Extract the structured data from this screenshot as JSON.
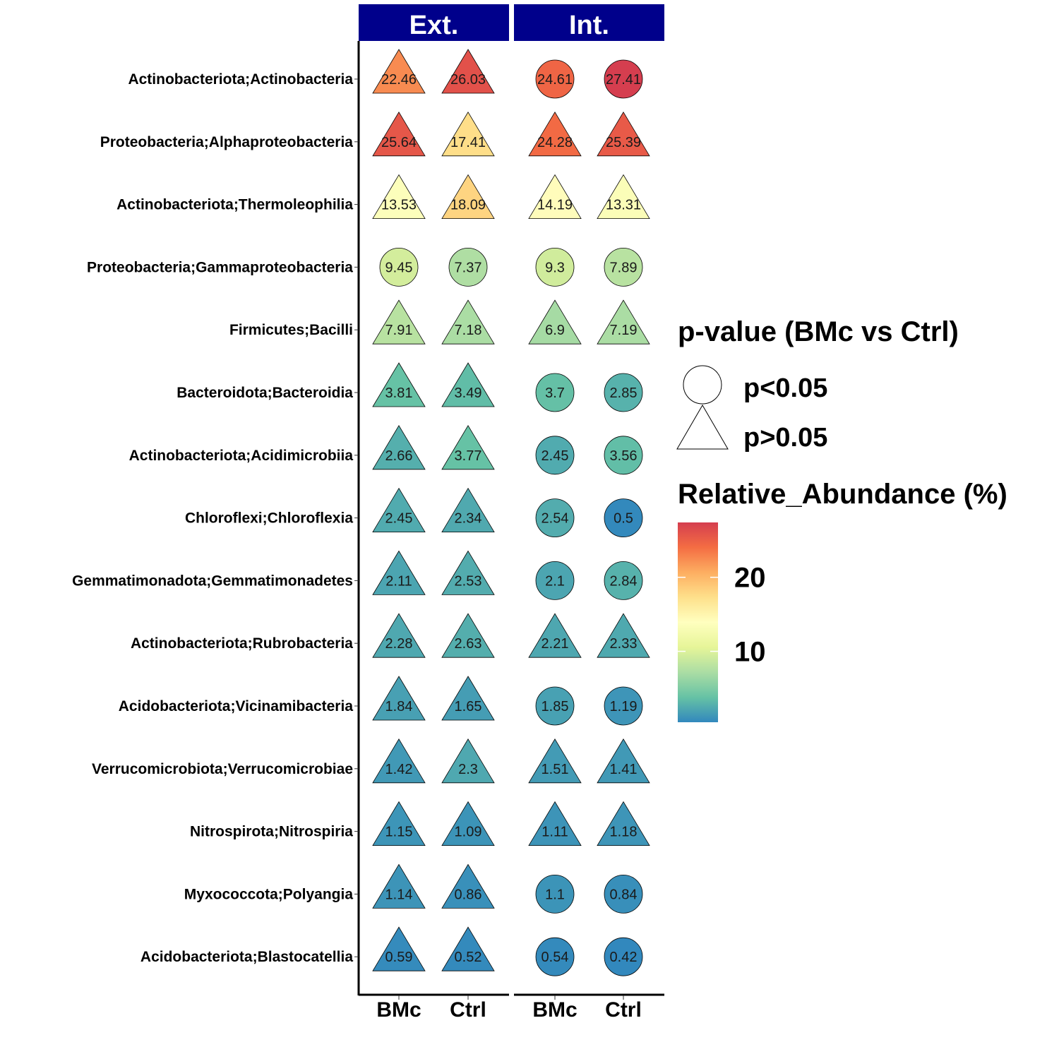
{
  "chart_data": {
    "type": "heatmap",
    "facets": [
      "Ext.",
      "Int."
    ],
    "x_categories": [
      "BMc",
      "Ctrl"
    ],
    "y_categories": [
      "Actinobacteriota;Actinobacteria",
      "Proteobacteria;Alphaproteobacteria",
      "Actinobacteriota;Thermoleophilia",
      "Proteobacteria;Gammaproteobacteria",
      "Firmicutes;Bacilli",
      "Bacteroidota;Bacteroidia",
      "Actinobacteriota;Acidimicrobiia",
      "Chloroflexi;Chloroflexia",
      "Gemmatimonadota;Gemmatimonadetes",
      "Actinobacteriota;Rubrobacteria",
      "Acidobacteriota;Vicinamibacteria",
      "Verrucomicrobiota;Verrucomicrobiae",
      "Nitrospirota;Nitrospiria",
      "Myxococcota;Polyangia",
      "Acidobacteriota;Blastocatellia"
    ],
    "values": {
      "Ext.": {
        "BMc": [
          22.46,
          25.64,
          13.53,
          9.45,
          7.91,
          3.81,
          2.66,
          2.45,
          2.11,
          2.28,
          1.84,
          1.42,
          1.15,
          1.14,
          0.59
        ],
        "Ctrl": [
          26.03,
          17.41,
          18.09,
          7.37,
          7.18,
          3.49,
          3.77,
          2.34,
          2.53,
          2.63,
          1.65,
          2.3,
          1.09,
          0.86,
          0.52
        ]
      },
      "Int.": {
        "BMc": [
          24.61,
          24.28,
          14.19,
          9.3,
          6.9,
          3.7,
          2.45,
          2.54,
          2.1,
          2.21,
          1.85,
          1.51,
          1.11,
          1.1,
          0.54
        ],
        "Ctrl": [
          27.41,
          25.39,
          13.31,
          7.89,
          7.19,
          2.85,
          3.56,
          0.5,
          2.84,
          2.33,
          1.19,
          1.41,
          1.18,
          0.84,
          0.42
        ]
      }
    },
    "shapes": {
      "Ext.": {
        "BMc": [
          "p>0.05",
          "p>0.05",
          "p>0.05",
          "p<0.05",
          "p>0.05",
          "p>0.05",
          "p>0.05",
          "p>0.05",
          "p>0.05",
          "p>0.05",
          "p>0.05",
          "p>0.05",
          "p>0.05",
          "p>0.05",
          "p>0.05"
        ],
        "Ctrl": [
          "p>0.05",
          "p>0.05",
          "p>0.05",
          "p<0.05",
          "p>0.05",
          "p>0.05",
          "p>0.05",
          "p>0.05",
          "p>0.05",
          "p>0.05",
          "p>0.05",
          "p>0.05",
          "p>0.05",
          "p>0.05",
          "p>0.05"
        ]
      },
      "Int.": {
        "BMc": [
          "p<0.05",
          "p>0.05",
          "p>0.05",
          "p<0.05",
          "p>0.05",
          "p<0.05",
          "p<0.05",
          "p<0.05",
          "p<0.05",
          "p>0.05",
          "p<0.05",
          "p>0.05",
          "p>0.05",
          "p<0.05",
          "p<0.05"
        ],
        "Ctrl": [
          "p<0.05",
          "p>0.05",
          "p>0.05",
          "p<0.05",
          "p>0.05",
          "p<0.05",
          "p<0.05",
          "p<0.05",
          "p<0.05",
          "p>0.05",
          "p<0.05",
          "p>0.05",
          "p>0.05",
          "p<0.05",
          "p<0.05"
        ]
      }
    },
    "legend_shape": {
      "title": "p-value (BMc vs Ctrl)",
      "items": [
        "p<0.05",
        "p>0.05"
      ]
    },
    "legend_color": {
      "title": "Relative_Abundance (%)",
      "ticks": [
        20,
        10
      ],
      "range": [
        0.42,
        27.41
      ],
      "palette": [
        "#3288bd",
        "#66c2a5",
        "#abdda4",
        "#e6f598",
        "#ffffbf",
        "#fee08b",
        "#fdae61",
        "#f46d43",
        "#d53e4f"
      ]
    },
    "legend_position": "right",
    "grid": false
  },
  "colors": {
    "strip_background": "#00008b",
    "strip_text": "#ffffff"
  }
}
